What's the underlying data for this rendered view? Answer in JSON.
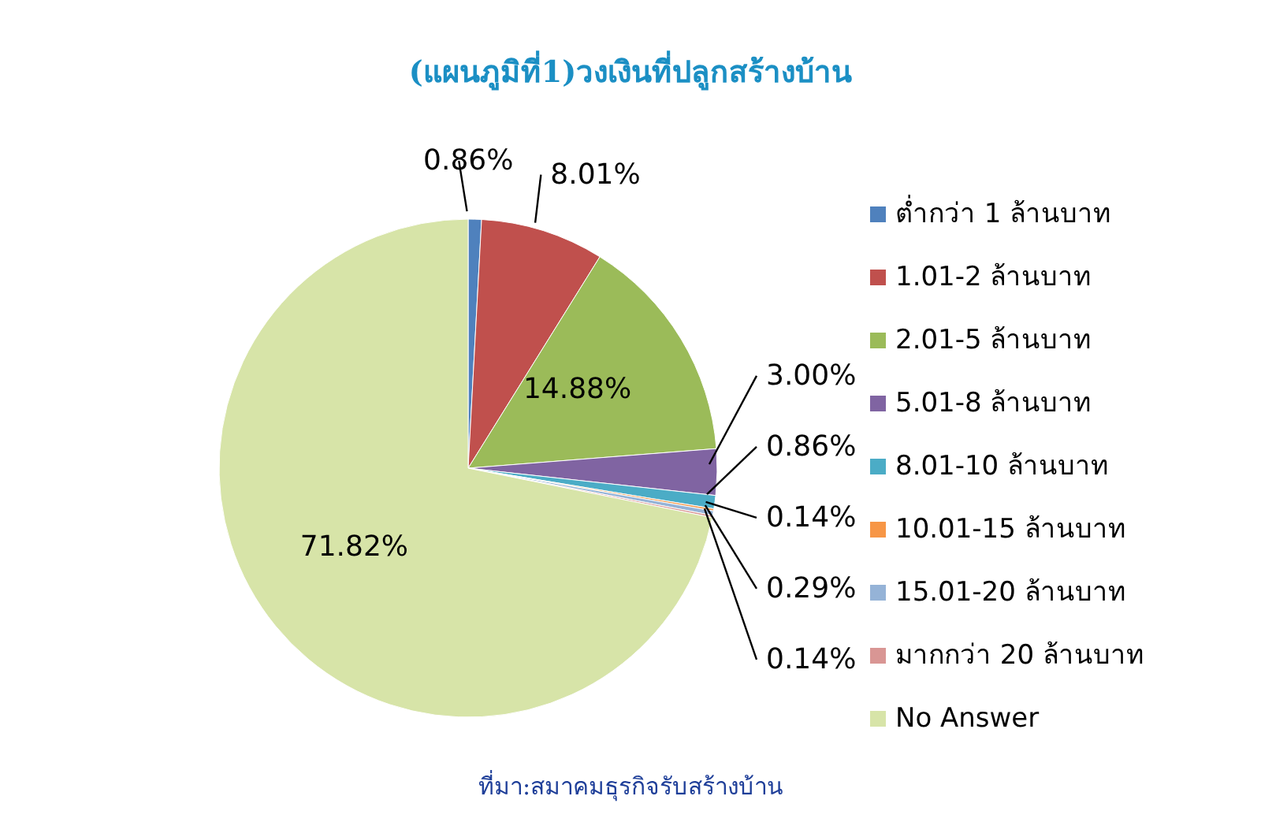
{
  "chart_data": {
    "type": "pie",
    "title": "(แผนภูมิที่1)วงเงินที่ปลูกสร้างบ้าน",
    "categories": [
      "ต่ำกว่า 1 ล้านบาท",
      "1.01-2 ล้านบาท",
      "2.01-5 ล้านบาท",
      "5.01-8 ล้านบาท",
      "8.01-10 ล้านบาท",
      "10.01-15 ล้านบาท",
      "15.01-20 ล้านบาท",
      "มากกว่า 20 ล้านบาท",
      "No Answer"
    ],
    "values": [
      0.86,
      8.01,
      14.88,
      3.0,
      0.86,
      0.14,
      0.29,
      0.14,
      71.82
    ],
    "colors": [
      "#4f81bd",
      "#c0504d",
      "#9bbb59",
      "#8064a2",
      "#4bacc6",
      "#f79646",
      "#95b3d7",
      "#d99694",
      "#d7e4a8"
    ],
    "value_labels": [
      "0.86%",
      "8.01%",
      "14.88%",
      "3.00%",
      "0.86%",
      "0.14%",
      "0.29%",
      "0.14%",
      "71.82%"
    ],
    "legend": "right",
    "annotations": [
      "ที่มา:สมาคมธุรกิจรับสร้างบ้าน"
    ]
  }
}
